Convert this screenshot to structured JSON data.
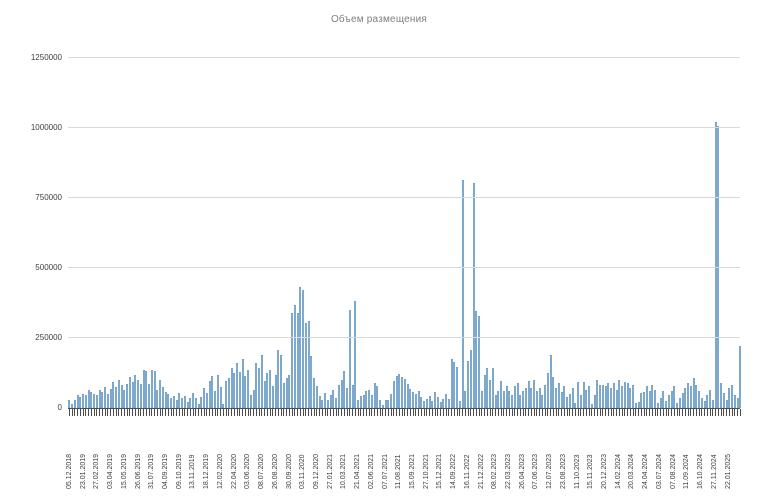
{
  "title": "Объем размещения",
  "chart_data": {
    "type": "bar",
    "title": "Объем размещения",
    "ylabel": "",
    "xlabel": "",
    "ylim": [
      0,
      1250000
    ],
    "y_ticks": [
      0,
      250000,
      500000,
      750000,
      1000000,
      1250000
    ],
    "grid": true,
    "legend": "none",
    "bar_color": "#8fb6da",
    "bar_edge_color": "#6d9cc4",
    "label_every": 5,
    "x_labels": [
      "05.12.2018",
      "23.01.2019",
      "27.02.2019",
      "03.04.2019",
      "15.05.2019",
      "26.06.2019",
      "31.07.2019",
      "04.09.2019",
      "09.10.2019",
      "13.11.2019",
      "18.12.2019",
      "12.02.2020",
      "22.04.2020",
      "03.06.2020",
      "08.07.2020",
      "26.08.2020",
      "30.09.2020",
      "03.11.2020",
      "09.12.2020",
      "27.01.2021",
      "10.03.2021",
      "21.04.2021",
      "02.06.2021",
      "07.07.2021",
      "11.08.2021",
      "15.09.2021",
      "27.10.2021",
      "15.12.2021",
      "14.09.2022",
      "16.11.2022",
      "21.12.2022",
      "08.02.2023",
      "22.03.2023",
      "26.04.2023",
      "07.06.2023",
      "12.07.2023",
      "23.08.2023",
      "11.10.2023",
      "15.11.2023",
      "20.12.2023",
      "14.02.2024",
      "20.03.2024",
      "24.04.2024",
      "03.07.2024",
      "07.08.2024",
      "11.09.2024",
      "16.10.2024",
      "27.11.2024",
      "22.01.2025"
    ],
    "values": [
      28000,
      15000,
      27000,
      45000,
      39000,
      51000,
      45000,
      63000,
      57000,
      51000,
      45000,
      63000,
      57000,
      75000,
      51000,
      69000,
      93000,
      75000,
      99000,
      81000,
      63000,
      87000,
      111000,
      93000,
      117000,
      99000,
      87000,
      137000,
      131000,
      87000,
      137000,
      131000,
      63000,
      99000,
      75000,
      57000,
      51000,
      36000,
      43000,
      28000,
      54000,
      36000,
      43000,
      21000,
      36000,
      54000,
      36000,
      14000,
      39000,
      71000,
      54000,
      95000,
      113000,
      62000,
      119000,
      74000,
      14000,
      95000,
      107000,
      143000,
      125000,
      161000,
      128000,
      175000,
      115000,
      135000,
      48000,
      65000,
      160000,
      143000,
      190000,
      95000,
      125000,
      137000,
      77000,
      119000,
      208000,
      190000,
      89000,
      107000,
      119000,
      339000,
      369000,
      339000,
      431000,
      423000,
      304000,
      310000,
      184000,
      107000,
      77000,
      42000,
      30000,
      54000,
      27000,
      48000,
      66000,
      36000,
      83000,
      101000,
      131000,
      71000,
      351000,
      83000,
      381000,
      27000,
      42000,
      48000,
      60000,
      66000,
      48000,
      89000,
      77000,
      27000,
      12000,
      30000,
      27000,
      50000,
      98000,
      115000,
      121000,
      110000,
      104000,
      86000,
      68000,
      56000,
      50000,
      62000,
      38000,
      26000,
      32000,
      44000,
      26000,
      56000,
      38000,
      20000,
      32000,
      50000,
      32000,
      175000,
      163000,
      145000,
      26000,
      815000,
      60000,
      167000,
      208000,
      803000,
      345000,
      330000,
      60000,
      119000,
      143000,
      101000,
      143000,
      48000,
      60000,
      95000,
      60000,
      77000,
      60000,
      48000,
      77000,
      89000,
      48000,
      60000,
      71000,
      95000,
      71000,
      101000,
      60000,
      71000,
      48000,
      83000,
      125000,
      190000,
      110000,
      70000,
      89000,
      58000,
      77000,
      39000,
      51000,
      70000,
      19000,
      93000,
      45000,
      93000,
      64000,
      77000,
      13000,
      45000,
      99000,
      83000,
      83000,
      77000,
      89000,
      70000,
      89000,
      64000,
      99000,
      77000,
      93000,
      89000,
      70000,
      83000,
      17000,
      23000,
      52000,
      58000,
      77000,
      60000,
      83000,
      65000,
      18000,
      36000,
      60000,
      24000,
      48000,
      60000,
      77000,
      18000,
      36000,
      54000,
      71000,
      89000,
      77000,
      107000,
      83000,
      60000,
      36000,
      24000,
      48000,
      65000,
      30000,
      1021000,
      1006000,
      89000,
      54000,
      30000,
      71000,
      83000,
      48000,
      36000,
      220000
    ]
  }
}
